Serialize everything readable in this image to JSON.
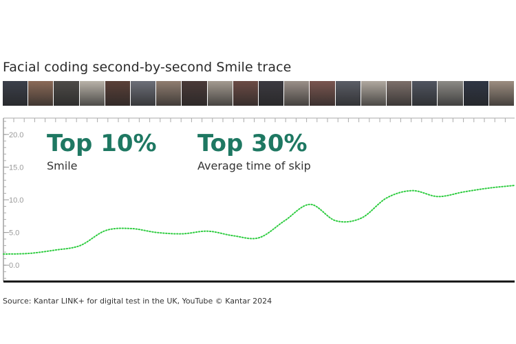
{
  "title": "Facial coding second-by-second Smile trace",
  "stats": [
    {
      "value": "Top 10%",
      "label": "Smile"
    },
    {
      "value": "Top 30%",
      "label": "Average time of skip"
    }
  ],
  "source": "Source: Kantar LINK+ for digital test in the UK, YouTube © Kantar 2024",
  "colors": {
    "accent": "#1e7862",
    "trace": "#2ecc40",
    "axis": "#999999"
  },
  "filmstrip_tones": [
    "#3b3f4a",
    "#8a6a58",
    "#4e4b48",
    "#b8b2a8",
    "#5a4038",
    "#6d6f78",
    "#8f7d70",
    "#4a3a38",
    "#a39a90",
    "#6b4b45",
    "#3c3a40",
    "#9a8f88",
    "#7a5650",
    "#5b5d66",
    "#b0a89f",
    "#7c6f6a",
    "#505560",
    "#8c8a86",
    "#2f3644",
    "#9c8d80"
  ],
  "chart_data": {
    "type": "line",
    "title": "",
    "xlabel": "",
    "ylabel": "",
    "ylim": [
      -2.5,
      22.5
    ],
    "yticks": [
      "0.0",
      "5.0",
      "10.0",
      "15.0",
      "20.0"
    ],
    "grid": false,
    "line_style": "dotted",
    "series": [
      {
        "x": [
          0,
          5,
          10,
          15,
          20,
          25,
          30,
          35,
          40,
          45,
          50,
          55,
          60,
          65,
          70,
          75,
          80,
          85,
          90,
          95,
          100
        ],
        "values": [
          1.7,
          1.8,
          2.3,
          3.0,
          5.3,
          5.6,
          5.0,
          4.8,
          5.2,
          4.5,
          4.2,
          6.8,
          9.3,
          6.8,
          7.2,
          10.3,
          11.4,
          10.5,
          11.2,
          11.8,
          12.2
        ]
      }
    ]
  }
}
